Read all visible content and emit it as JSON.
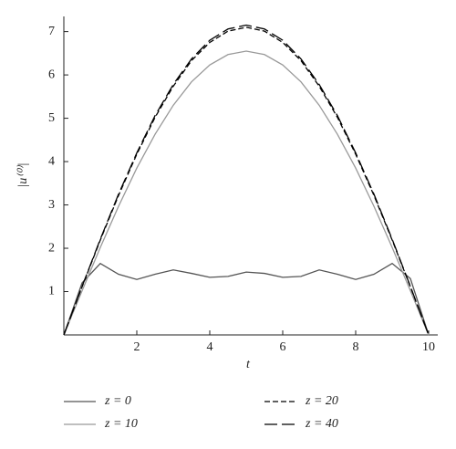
{
  "chart_data": {
    "type": "line",
    "x_label": "t",
    "y_label": "|u⁽⁰⁾|",
    "x": [
      0,
      0.5,
      1,
      1.5,
      2,
      2.5,
      3,
      3.5,
      4,
      4.5,
      5,
      5.5,
      6,
      6.5,
      7,
      7.5,
      8,
      8.5,
      9,
      9.5,
      10
    ],
    "series": [
      {
        "name": "z = 0",
        "color": "#555555",
        "dash": "solid",
        "values": [
          0,
          1.2,
          1.65,
          1.4,
          1.28,
          1.4,
          1.5,
          1.42,
          1.33,
          1.35,
          1.45,
          1.42,
          1.33,
          1.35,
          1.5,
          1.4,
          1.28,
          1.4,
          1.65,
          1.3,
          0
        ]
      },
      {
        "name": "z = 10",
        "color": "#999999",
        "dash": "solid",
        "values": [
          0,
          1.02,
          2.02,
          2.97,
          3.85,
          4.63,
          5.3,
          5.84,
          6.23,
          6.47,
          6.55,
          6.47,
          6.23,
          5.84,
          5.3,
          4.63,
          3.85,
          2.97,
          2.02,
          1.02,
          0
        ]
      },
      {
        "name": "z = 20",
        "color": "#000000",
        "dash": "short",
        "values": [
          0,
          1.11,
          2.19,
          3.22,
          4.17,
          5.02,
          5.74,
          6.33,
          6.75,
          7.01,
          7.1,
          7.01,
          6.75,
          6.33,
          5.74,
          5.02,
          4.17,
          3.22,
          2.19,
          1.11,
          0
        ]
      },
      {
        "name": "z = 40",
        "color": "#000000",
        "dash": "long",
        "values": [
          0,
          1.12,
          2.21,
          3.25,
          4.2,
          5.06,
          5.78,
          6.37,
          6.8,
          7.06,
          7.15,
          7.06,
          6.8,
          6.37,
          5.78,
          5.06,
          4.2,
          3.25,
          2.21,
          1.12,
          0
        ]
      }
    ],
    "xlim": [
      0,
      10.25
    ],
    "ylim": [
      0,
      7.35
    ],
    "xticks": [
      2,
      4,
      6,
      8,
      10
    ],
    "yticks": [
      1,
      2,
      3,
      4,
      5,
      6,
      7
    ]
  }
}
